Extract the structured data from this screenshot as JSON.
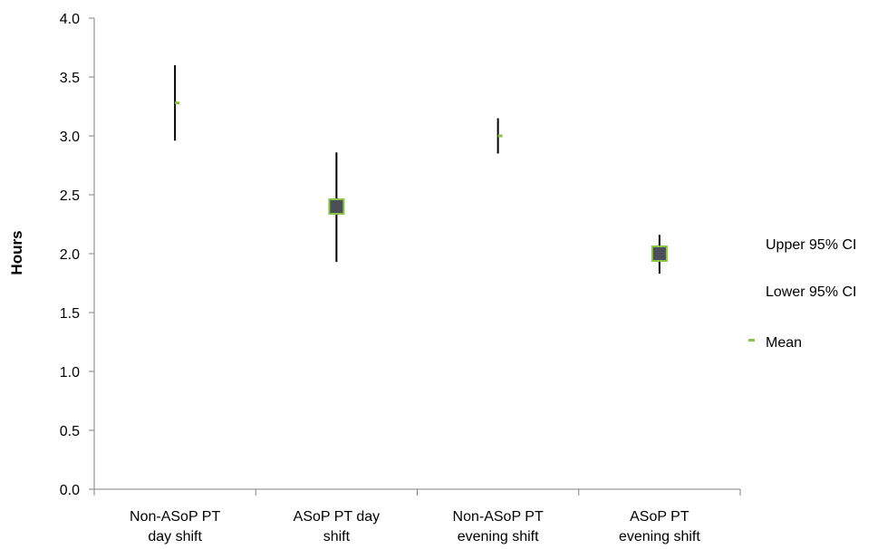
{
  "chart_data": {
    "type": "stock",
    "title": "",
    "xlabel": "",
    "ylabel": "Hours",
    "ylim": [
      0,
      4.0
    ],
    "yticks": [
      "0.0",
      "0.5",
      "1.0",
      "1.5",
      "2.0",
      "2.5",
      "3.0",
      "3.5",
      "4.0"
    ],
    "categories": [
      [
        "Non-ASoP PT",
        "day shift"
      ],
      [
        "ASoP PT day",
        "shift"
      ],
      [
        "Non-ASoP PT",
        "evening shift"
      ],
      [
        "ASoP PT",
        "evening shift"
      ]
    ],
    "series": [
      {
        "name": "Upper 95% CI",
        "values": [
          3.6,
          2.86,
          3.15,
          2.16
        ]
      },
      {
        "name": "Lower 95% CI",
        "values": [
          2.96,
          1.93,
          2.85,
          1.83
        ]
      },
      {
        "name": "Mean",
        "values": [
          3.28,
          2.4,
          3.0,
          2.0
        ]
      }
    ],
    "mean_style": [
      "dash",
      "box",
      "dash",
      "box"
    ],
    "colors": {
      "whisker": "#000000",
      "mean": "#8bc34a",
      "box_fill": "#4a4f58",
      "box_border": "#8bc34a",
      "axis": "#808080"
    },
    "legend_position": "right",
    "grid": false
  }
}
